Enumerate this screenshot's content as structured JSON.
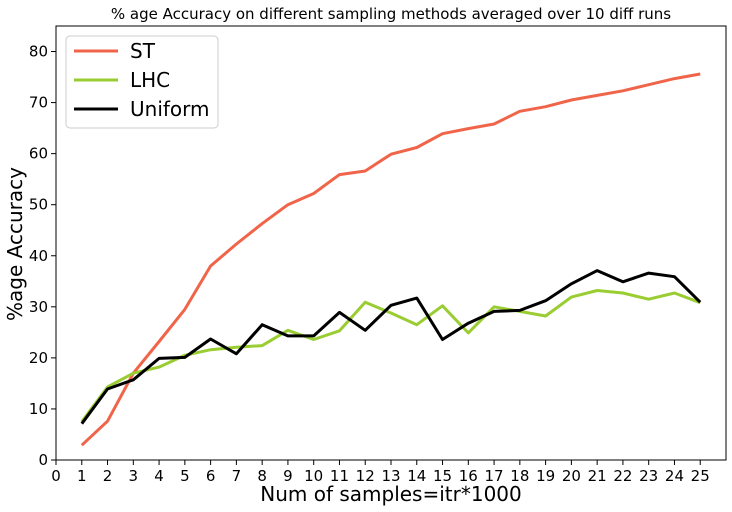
{
  "chart_data": {
    "type": "line",
    "title": "% age Accuracy on different sampling methods averaged over 10 diff runs",
    "xlabel": "Num of samples=itr*1000",
    "ylabel": "%age Accuracy",
    "xlim": [
      0,
      26
    ],
    "ylim": [
      0,
      85
    ],
    "xticks": [
      "0",
      "1",
      "2",
      "3",
      "4",
      "5",
      "6",
      "7",
      "8",
      "9",
      "10",
      "11",
      "12",
      "13",
      "14",
      "15",
      "16",
      "17",
      "18",
      "19",
      "20",
      "21",
      "22",
      "23",
      "24",
      "25"
    ],
    "yticks": [
      "0",
      "10",
      "20",
      "30",
      "40",
      "50",
      "60",
      "70",
      "80"
    ],
    "grid": false,
    "legend_position": "top-left",
    "x": [
      1,
      2,
      3,
      4,
      5,
      6,
      7,
      8,
      9,
      10,
      11,
      12,
      13,
      14,
      15,
      16,
      17,
      18,
      19,
      20,
      21,
      22,
      23,
      24,
      25
    ],
    "series": [
      {
        "name": "ST",
        "color": "#f0654a",
        "values": [
          2.9,
          7.6,
          17.0,
          23.2,
          29.5,
          38.0,
          42.3,
          46.3,
          50.0,
          52.2,
          55.9,
          56.6,
          59.9,
          61.2,
          63.9,
          64.9,
          65.8,
          68.3,
          69.2,
          70.5,
          71.4,
          72.3,
          73.5,
          74.7,
          75.6
        ]
      },
      {
        "name": "LHC",
        "color": "#9acd32",
        "values": [
          7.5,
          14.3,
          17.0,
          18.2,
          20.5,
          21.6,
          22.1,
          22.4,
          25.4,
          23.6,
          25.3,
          30.9,
          28.8,
          26.5,
          30.2,
          24.9,
          30.0,
          29.1,
          28.2,
          31.9,
          33.2,
          32.7,
          31.5,
          32.7,
          30.8
        ]
      },
      {
        "name": "Uniform",
        "color": "#000000",
        "values": [
          7.1,
          13.9,
          15.7,
          19.9,
          20.1,
          23.7,
          20.8,
          26.5,
          24.3,
          24.3,
          28.9,
          25.4,
          30.3,
          31.7,
          23.6,
          26.8,
          29.1,
          29.3,
          31.2,
          34.5,
          37.1,
          34.9,
          36.6,
          35.9,
          30.9
        ]
      }
    ]
  }
}
